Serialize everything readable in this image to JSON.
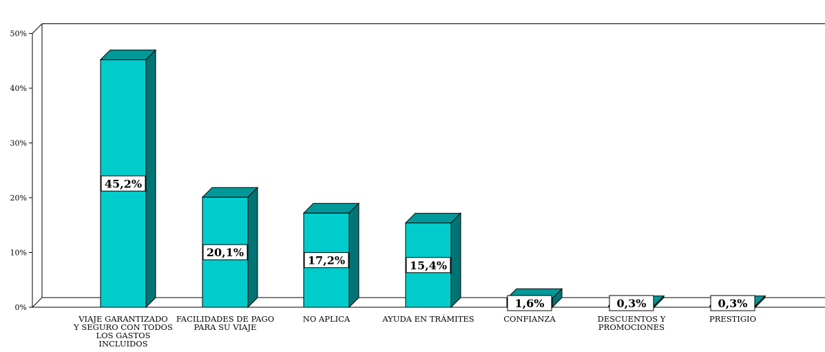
{
  "colors": {
    "bar_front": "#00CCCC",
    "bar_top": "#009999",
    "bar_side": "#007474",
    "outline": "#000000",
    "label_bg": "#ffffff"
  },
  "chart_data": {
    "type": "bar",
    "style": "3d",
    "categories": [
      [
        "VIAJE GARANTIZADO",
        "Y SEGURO CON TODOS",
        "LOS GASTOS",
        "INCLUIDOS"
      ],
      [
        "FACILIDADES DE PAGO",
        "PARA SU VIAJE"
      ],
      [
        "NO APLICA"
      ],
      [
        "AYUDA EN TRÁMITES"
      ],
      [
        "CONFIANZA"
      ],
      [
        "DESCUENTOS Y",
        "PROMOCIONES"
      ],
      [
        "PRESTIGIO"
      ]
    ],
    "values": [
      45.2,
      20.1,
      17.2,
      15.4,
      1.6,
      0.3,
      0.3
    ],
    "data_labels": [
      "45,2%",
      "20,1%",
      "17,2%",
      "15,4%",
      "1,6%",
      "0,3%",
      "0,3%"
    ],
    "yticks": [
      "0%",
      "10%",
      "20%",
      "30%",
      "40%",
      "50%"
    ],
    "ylim": [
      0,
      50
    ],
    "grid": false,
    "legend": "none",
    "title": "",
    "xlabel": "",
    "ylabel": ""
  }
}
